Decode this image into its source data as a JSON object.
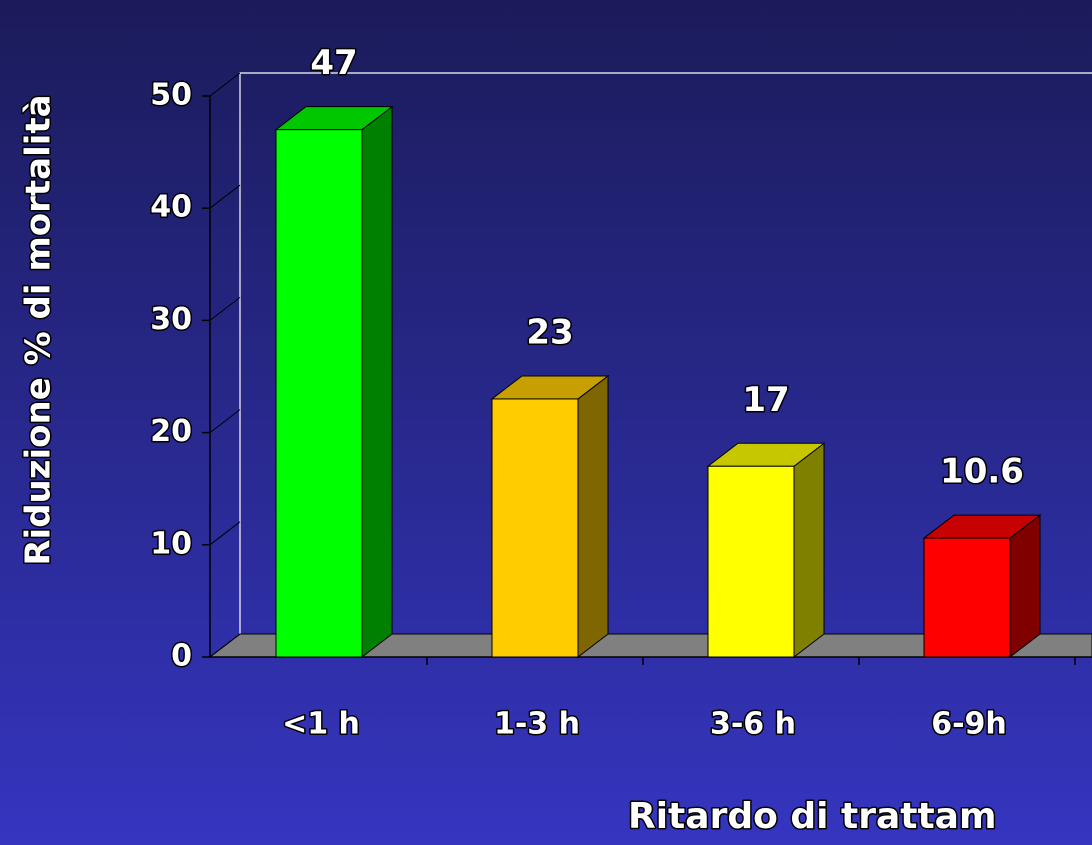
{
  "chart_data": {
    "type": "bar",
    "y_label": "Riduzione % di mortalità",
    "x_label": "Ritardo di trattam",
    "categories": [
      "<1 h",
      "1-3 h",
      "3-6 h",
      "6-9h"
    ],
    "values": [
      47,
      23,
      17,
      10.6
    ],
    "colors": [
      "#00ff00",
      "#ffcc00",
      "#ffff00",
      "#ff0000"
    ],
    "ylim": [
      0,
      50
    ],
    "yticks": [
      0,
      10,
      20,
      30,
      40,
      50
    ]
  }
}
